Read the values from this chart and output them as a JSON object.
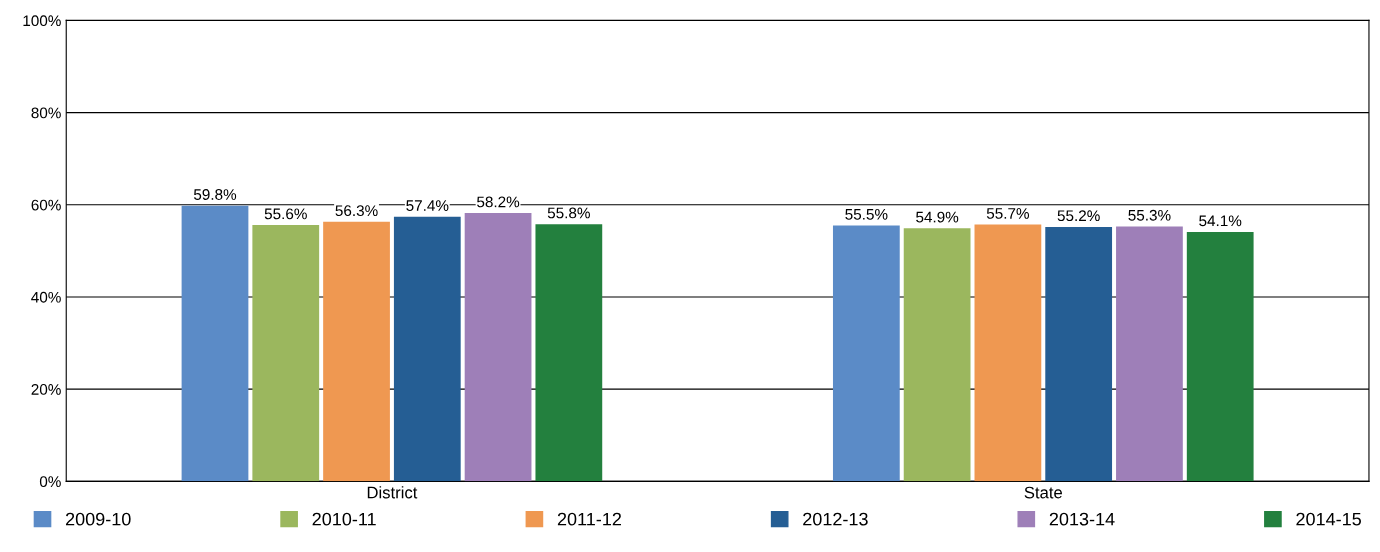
{
  "chart_data": {
    "type": "bar",
    "categories": [
      "District",
      "State"
    ],
    "series": [
      {
        "name": "2009-10",
        "color": "#5b8bc7",
        "values": [
          59.8,
          55.5
        ]
      },
      {
        "name": "2010-11",
        "color": "#9bb75e",
        "values": [
          55.6,
          54.9
        ]
      },
      {
        "name": "2011-12",
        "color": "#ef9851",
        "values": [
          56.3,
          55.7
        ]
      },
      {
        "name": "2012-13",
        "color": "#255e94",
        "values": [
          57.4,
          55.2
        ]
      },
      {
        "name": "2013-14",
        "color": "#9e7fb8",
        "values": [
          58.2,
          55.3
        ]
      },
      {
        "name": "2014-15",
        "color": "#23803e",
        "values": [
          55.8,
          54.1
        ]
      }
    ],
    "value_labels": [
      [
        "59.8%",
        "55.5%"
      ],
      [
        "55.6%",
        "54.9%"
      ],
      [
        "56.3%",
        "55.7%"
      ],
      [
        "57.4%",
        "55.2%"
      ],
      [
        "58.2%",
        "55.3%"
      ],
      [
        "55.8%",
        "54.1%"
      ]
    ],
    "ylim": [
      0,
      100
    ],
    "yticks": [
      {
        "value": 0,
        "label": "0%"
      },
      {
        "value": 20,
        "label": "20%"
      },
      {
        "value": 40,
        "label": "40%"
      },
      {
        "value": 60,
        "label": "60%"
      },
      {
        "value": 80,
        "label": "80%"
      },
      {
        "value": 100,
        "label": "100%"
      }
    ],
    "grid": "y",
    "legend": "bottom"
  }
}
